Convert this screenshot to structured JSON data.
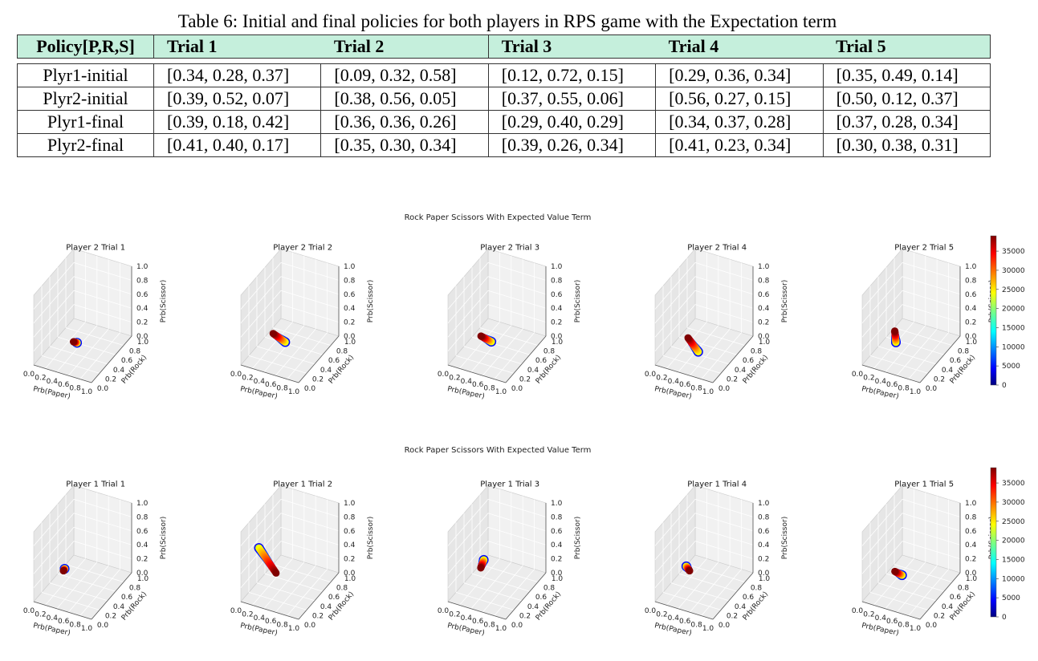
{
  "caption": "Table 6: Initial and final policies for both players in RPS game with the Expectation term",
  "table": {
    "headers": [
      "Policy[P,R,S]",
      "Trial 1",
      "Trial 2",
      "Trial 3",
      "Trial 4",
      "Trial 5"
    ],
    "rows": [
      [
        "Plyr1-initial",
        "[0.34, 0.28, 0.37]",
        "[0.09, 0.32, 0.58]",
        "[0.12, 0.72, 0.15]",
        "[0.29, 0.36, 0.34]",
        "[0.35, 0.49, 0.14]"
      ],
      [
        "Plyr2-initial",
        "[0.39, 0.52, 0.07]",
        "[0.38, 0.56, 0.05]",
        "[0.37, 0.55, 0.06]",
        "[0.56, 0.27, 0.15]",
        "[0.50, 0.12, 0.37]"
      ],
      [
        "Plyr1-final",
        "[0.39, 0.18, 0.42]",
        "[0.36, 0.36, 0.26]",
        "[0.29, 0.40, 0.29]",
        "[0.34, 0.37, 0.28]",
        "[0.37, 0.28, 0.34]"
      ],
      [
        "Plyr2-final",
        "[0.41, 0.40, 0.17]",
        "[0.35, 0.30, 0.34]",
        "[0.39, 0.26, 0.34]",
        "[0.41, 0.23, 0.34]",
        "[0.30, 0.38, 0.31]"
      ]
    ]
  },
  "chart_data": [
    {
      "type": "scatter",
      "title": "Rock Paper Scissors With Expected Value Term",
      "subplot_titles": [
        "Player 2 Trial 1",
        "Player 2 Trial 2",
        "Player 2 Trial 3",
        "Player 2 Trial 4",
        "Player 2 Trial 5"
      ],
      "xlabel": "Prb(Paper)",
      "ylabel": "Prb(Rock)",
      "zlabel": "Prb(Scissor)",
      "xticks": [
        "0.0",
        "0.2",
        "0.4",
        "0.6",
        "0.8",
        "1.0"
      ],
      "yticks": [
        "0.0",
        "0.2",
        "0.4",
        "0.6",
        "0.8",
        "1.0"
      ],
      "zticks": [
        "0.0",
        "0.2",
        "0.4",
        "0.6",
        "0.8",
        "1.0"
      ],
      "xlim": [
        0,
        1
      ],
      "ylim": [
        0,
        1
      ],
      "zlim": [
        0,
        1
      ],
      "colorbar": {
        "ticks": [
          "0",
          "5000",
          "10000",
          "15000",
          "20000",
          "25000",
          "30000",
          "35000"
        ],
        "max": 39000,
        "colormap": "jet"
      },
      "trajectories": [
        {
          "start": [
            0.39,
            0.52,
            0.07
          ],
          "end": [
            0.41,
            0.4,
            0.17
          ]
        },
        {
          "start": [
            0.38,
            0.56,
            0.05
          ],
          "end": [
            0.35,
            0.3,
            0.34
          ]
        },
        {
          "start": [
            0.37,
            0.55,
            0.06
          ],
          "end": [
            0.39,
            0.26,
            0.34
          ]
        },
        {
          "start": [
            0.56,
            0.27,
            0.15
          ],
          "end": [
            0.41,
            0.23,
            0.34
          ]
        },
        {
          "start": [
            0.5,
            0.12,
            0.37
          ],
          "end": [
            0.3,
            0.38,
            0.31
          ]
        }
      ]
    },
    {
      "type": "scatter",
      "title": "Rock Paper Scissors With Expected Value Term",
      "subplot_titles": [
        "Player 1 Trial 1",
        "Player 1 Trial 2",
        "Player 1 Trial 3",
        "Player 1 Trial 4",
        "Player 1 Trial 5"
      ],
      "xlabel": "Prb(Paper)",
      "ylabel": "Prb(Rock)",
      "zlabel": "Prb(Scissor)",
      "xticks": [
        "0.0",
        "0.2",
        "0.4",
        "0.6",
        "0.8",
        "1.0"
      ],
      "yticks": [
        "0.0",
        "0.2",
        "0.4",
        "0.6",
        "0.8",
        "1.0"
      ],
      "zticks": [
        "0.0",
        "0.2",
        "0.4",
        "0.6",
        "0.8",
        "1.0"
      ],
      "xlim": [
        0,
        1
      ],
      "ylim": [
        0,
        1
      ],
      "zlim": [
        0,
        1
      ],
      "colorbar": {
        "ticks": [
          "0",
          "5000",
          "10000",
          "15000",
          "20000",
          "25000",
          "30000",
          "35000"
        ],
        "max": 39000,
        "colormap": "jet"
      },
      "trajectories": [
        {
          "start": [
            0.34,
            0.28,
            0.37
          ],
          "end": [
            0.39,
            0.18,
            0.42
          ]
        },
        {
          "start": [
            0.09,
            0.32,
            0.58
          ],
          "end": [
            0.36,
            0.36,
            0.26
          ]
        },
        {
          "start": [
            0.12,
            0.72,
            0.15
          ],
          "end": [
            0.29,
            0.4,
            0.29
          ]
        },
        {
          "start": [
            0.29,
            0.36,
            0.34
          ],
          "end": [
            0.34,
            0.37,
            0.28
          ]
        },
        {
          "start": [
            0.35,
            0.49,
            0.14
          ],
          "end": [
            0.37,
            0.28,
            0.34
          ]
        }
      ]
    }
  ]
}
